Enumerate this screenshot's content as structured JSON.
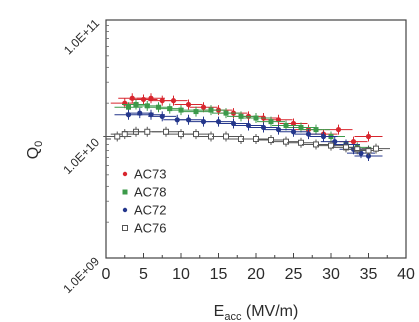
{
  "chart_data": {
    "type": "scatter",
    "title": "",
    "xlabel_main": "E",
    "xlabel_sub": "acc",
    "xlabel_unit": " (MV/m)",
    "ylabel": "Q",
    "ylabel_sub": "0",
    "xlim": [
      0,
      40
    ],
    "ylim_log10": [
      9,
      11
    ],
    "yscale": "log",
    "grid": false,
    "legend_position": "lower-left",
    "x_ticks": [
      "0",
      "5",
      "10",
      "15",
      "20",
      "25",
      "30",
      "35",
      "40"
    ],
    "y_ticks": [
      "1.0E+09",
      "1.0E+10",
      "1.0E+11"
    ],
    "series": [
      {
        "name": "AC73",
        "color": "#d8262e",
        "marker": "dot",
        "points": [
          [
            2.5,
            20000000000.0
          ],
          [
            3.5,
            22000000000.0
          ],
          [
            5,
            21500000000.0
          ],
          [
            6,
            22000000000.0
          ],
          [
            7.5,
            21000000000.0
          ],
          [
            9,
            21000000000.0
          ],
          [
            11,
            19500000000.0
          ],
          [
            13,
            18500000000.0
          ],
          [
            15,
            17500000000.0
          ],
          [
            17,
            16500000000.0
          ],
          [
            19,
            15500000000.0
          ],
          [
            21,
            15000000000.0
          ],
          [
            23,
            14500000000.0
          ],
          [
            25,
            13500000000.0
          ],
          [
            27,
            12000000000.0
          ],
          [
            29,
            11000000000.0
          ],
          [
            31,
            12000000000.0
          ],
          [
            33,
            9500000000.0
          ],
          [
            35,
            10500000000.0
          ]
        ]
      },
      {
        "name": "AC78",
        "color": "#3c9a4a",
        "marker": "square",
        "points": [
          [
            3,
            18500000000.0
          ],
          [
            4,
            19500000000.0
          ],
          [
            5.5,
            19000000000.0
          ],
          [
            7,
            18500000000.0
          ],
          [
            8.5,
            18000000000.0
          ],
          [
            10,
            17500000000.0
          ],
          [
            12,
            17000000000.0
          ],
          [
            14,
            17500000000.0
          ],
          [
            16,
            16500000000.0
          ],
          [
            18,
            15500000000.0
          ],
          [
            20,
            15000000000.0
          ],
          [
            22,
            14000000000.0
          ],
          [
            24,
            13000000000.0
          ],
          [
            26,
            12500000000.0
          ],
          [
            28,
            12000000000.0
          ],
          [
            30,
            10500000000.0
          ],
          [
            32,
            9000000000.0
          ],
          [
            33.5,
            8500000000.0
          ],
          [
            35,
            8000000000.0
          ]
        ]
      },
      {
        "name": "AC72",
        "color": "#24378c",
        "marker": "dot",
        "points": [
          [
            3,
            16000000000.0
          ],
          [
            4.5,
            16500000000.0
          ],
          [
            6,
            16000000000.0
          ],
          [
            7.5,
            15500000000.0
          ],
          [
            9.5,
            14500000000.0
          ],
          [
            11,
            14500000000.0
          ],
          [
            13,
            14000000000.0
          ],
          [
            15,
            14000000000.0
          ],
          [
            17,
            13500000000.0
          ],
          [
            19,
            13000000000.0
          ],
          [
            21,
            12500000000.0
          ],
          [
            23,
            12000000000.0
          ],
          [
            25,
            11500000000.0
          ],
          [
            27,
            11000000000.0
          ],
          [
            29,
            10500000000.0
          ],
          [
            30.5,
            9500000000.0
          ],
          [
            32,
            9000000000.0
          ],
          [
            33,
            8200000000.0
          ],
          [
            34,
            7600000000.0
          ],
          [
            35,
            7200000000.0
          ]
        ]
      },
      {
        "name": "AC76",
        "color": "#555555",
        "marker": "open-square",
        "points": [
          [
            1.5,
            10500000000.0
          ],
          [
            2.5,
            11000000000.0
          ],
          [
            4,
            11500000000.0
          ],
          [
            5.5,
            11500000000.0
          ],
          [
            8,
            11500000000.0
          ],
          [
            10,
            11000000000.0
          ],
          [
            12,
            11000000000.0
          ],
          [
            14,
            10500000000.0
          ],
          [
            16,
            10500000000.0
          ],
          [
            18,
            10000000000.0
          ],
          [
            20,
            10000000000.0
          ],
          [
            22,
            9800000000.0
          ],
          [
            24,
            9500000000.0
          ],
          [
            26,
            9300000000.0
          ],
          [
            28,
            9000000000.0
          ],
          [
            30,
            8800000000.0
          ],
          [
            32,
            8500000000.0
          ],
          [
            33.5,
            8200000000.0
          ],
          [
            35,
            8000000000.0
          ],
          [
            36,
            8300000000.0
          ]
        ]
      }
    ]
  }
}
